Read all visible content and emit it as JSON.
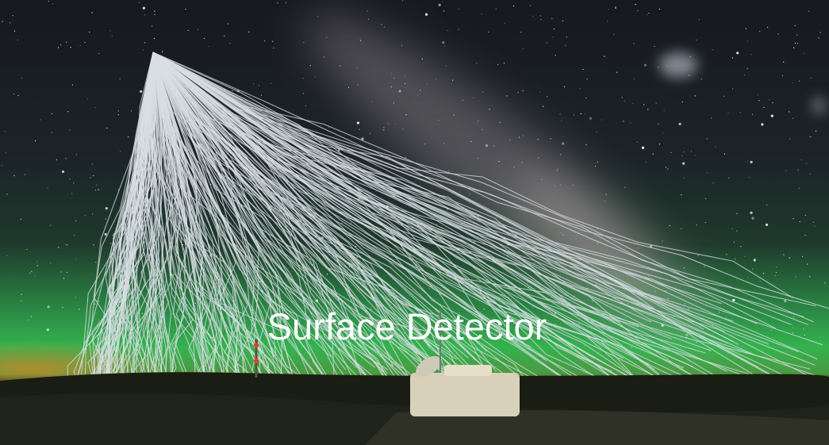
{
  "caption": "Surface Detector"
}
